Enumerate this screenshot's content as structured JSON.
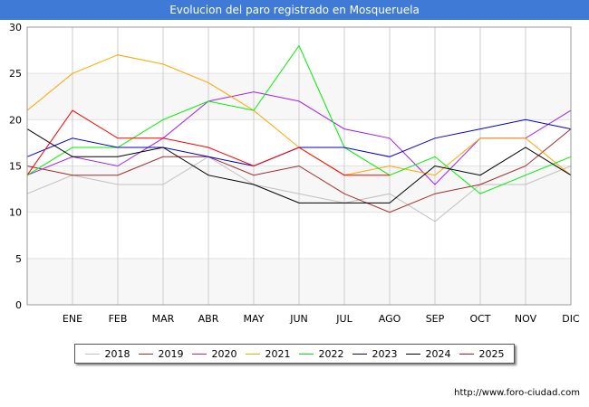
{
  "page": {
    "title": "Evolucion del paro registrado en Mosqueruela",
    "footer": "http://www.foro-ciudad.com"
  },
  "chart_data": {
    "type": "line",
    "title": "Evolucion del paro registrado en Mosqueruela",
    "xlabel": "",
    "ylabel": "",
    "categories": [
      "",
      "ENE",
      "FEB",
      "MAR",
      "ABR",
      "MAY",
      "JUN",
      "JUL",
      "AGO",
      "SEP",
      "OCT",
      "NOV",
      "DIC"
    ],
    "ylim": [
      0,
      30
    ],
    "yticks": [
      0,
      5,
      10,
      15,
      20,
      25,
      30
    ],
    "grid": true,
    "legend_position": "bottom",
    "series": [
      {
        "name": "2018",
        "color": "#c0c0c0",
        "values": [
          12,
          14,
          13,
          13,
          16,
          13,
          12,
          11,
          12,
          9,
          13,
          13,
          15
        ]
      },
      {
        "name": "2019",
        "color": "#a52a2a",
        "values": [
          15,
          14,
          14,
          16,
          16,
          14,
          15,
          12,
          10,
          12,
          13,
          15,
          19
        ]
      },
      {
        "name": "2020",
        "color": "#a020f0",
        "values": [
          14,
          16,
          15,
          18,
          22,
          23,
          22,
          19,
          18,
          13,
          18,
          18,
          21
        ]
      },
      {
        "name": "2021",
        "color": "#ffa500",
        "values": [
          21,
          25,
          27,
          26,
          24,
          21,
          17,
          14,
          15,
          14,
          18,
          18,
          14
        ]
      },
      {
        "name": "2022",
        "color": "#00ee00",
        "values": [
          14,
          17,
          17,
          20,
          22,
          21,
          28,
          17,
          14,
          16,
          12,
          14,
          16
        ]
      },
      {
        "name": "2023",
        "color": "#0000cd",
        "values": [
          16,
          18,
          17,
          17,
          16,
          15,
          17,
          17,
          16,
          18,
          19,
          20,
          19
        ]
      },
      {
        "name": "2024",
        "color": "#000000",
        "values": [
          19,
          16,
          16,
          17,
          14,
          13,
          11,
          11,
          11,
          15,
          14,
          17,
          14
        ]
      },
      {
        "name": "2025",
        "color": "#ff0000",
        "values": [
          14,
          21,
          18,
          18,
          17,
          15,
          17,
          14,
          14,
          null,
          null,
          null,
          null
        ]
      }
    ]
  }
}
